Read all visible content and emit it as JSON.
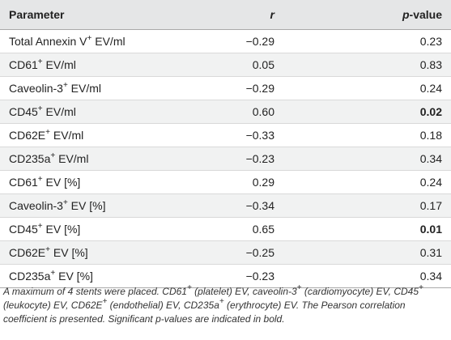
{
  "table": {
    "headers": {
      "parameter": "Parameter",
      "r": "r",
      "p_italic": "p",
      "p_suffix": "-value"
    },
    "rows": [
      {
        "base": "Total Annexin V",
        "sup": "+",
        "suffix": " EV/ml",
        "r": "−0.29",
        "p": "0.23",
        "significant": false
      },
      {
        "base": "CD61",
        "sup": "+",
        "suffix": " EV/ml",
        "r": "0.05",
        "p": "0.83",
        "significant": false
      },
      {
        "base": "Caveolin-3",
        "sup": "+",
        "suffix": " EV/ml",
        "r": "−0.29",
        "p": "0.24",
        "significant": false
      },
      {
        "base": "CD45",
        "sup": "+",
        "suffix": " EV/ml",
        "r": "0.60",
        "p": "0.02",
        "significant": true
      },
      {
        "base": "CD62E",
        "sup": "+",
        "suffix": " EV/ml",
        "r": "−0.33",
        "p": "0.18",
        "significant": false
      },
      {
        "base": "CD235a",
        "sup": "+",
        "suffix": " EV/ml",
        "r": "−0.23",
        "p": "0.34",
        "significant": false
      },
      {
        "base": "CD61",
        "sup": "+",
        "suffix": " EV [%]",
        "r": "0.29",
        "p": "0.24",
        "significant": false
      },
      {
        "base": "Caveolin-3",
        "sup": "+",
        "suffix": " EV [%]",
        "r": "−0.34",
        "p": "0.17",
        "significant": false
      },
      {
        "base": "CD45",
        "sup": "+",
        "suffix": " EV [%]",
        "r": "0.65",
        "p": "0.01",
        "significant": true
      },
      {
        "base": "CD62E",
        "sup": "+",
        "suffix": " EV [%]",
        "r": "−0.25",
        "p": "0.31",
        "significant": false
      },
      {
        "base": "CD235a",
        "sup": "+",
        "suffix": " EV [%]",
        "r": "−0.23",
        "p": "0.34",
        "significant": false
      }
    ]
  },
  "footnote": {
    "s1": "A maximum of 4 stents were placed. CD61",
    "s2": " (platelet) EV, caveolin-3",
    "s3": " (cardiomyocyte) EV, CD45",
    "s4": " (leukocyte) EV, CD62E",
    "s5": " (endothelial) EV, CD235a",
    "s6": " (erythrocyte) EV. The Pearson correlation coefficient is presented. Significant ",
    "s7": "p",
    "s8": "-values are indicated in bold.",
    "plus": "+"
  },
  "colors": {
    "header_bg": "#e5e6e7",
    "stripe_bg": "#f1f2f2",
    "text": "#222222"
  }
}
